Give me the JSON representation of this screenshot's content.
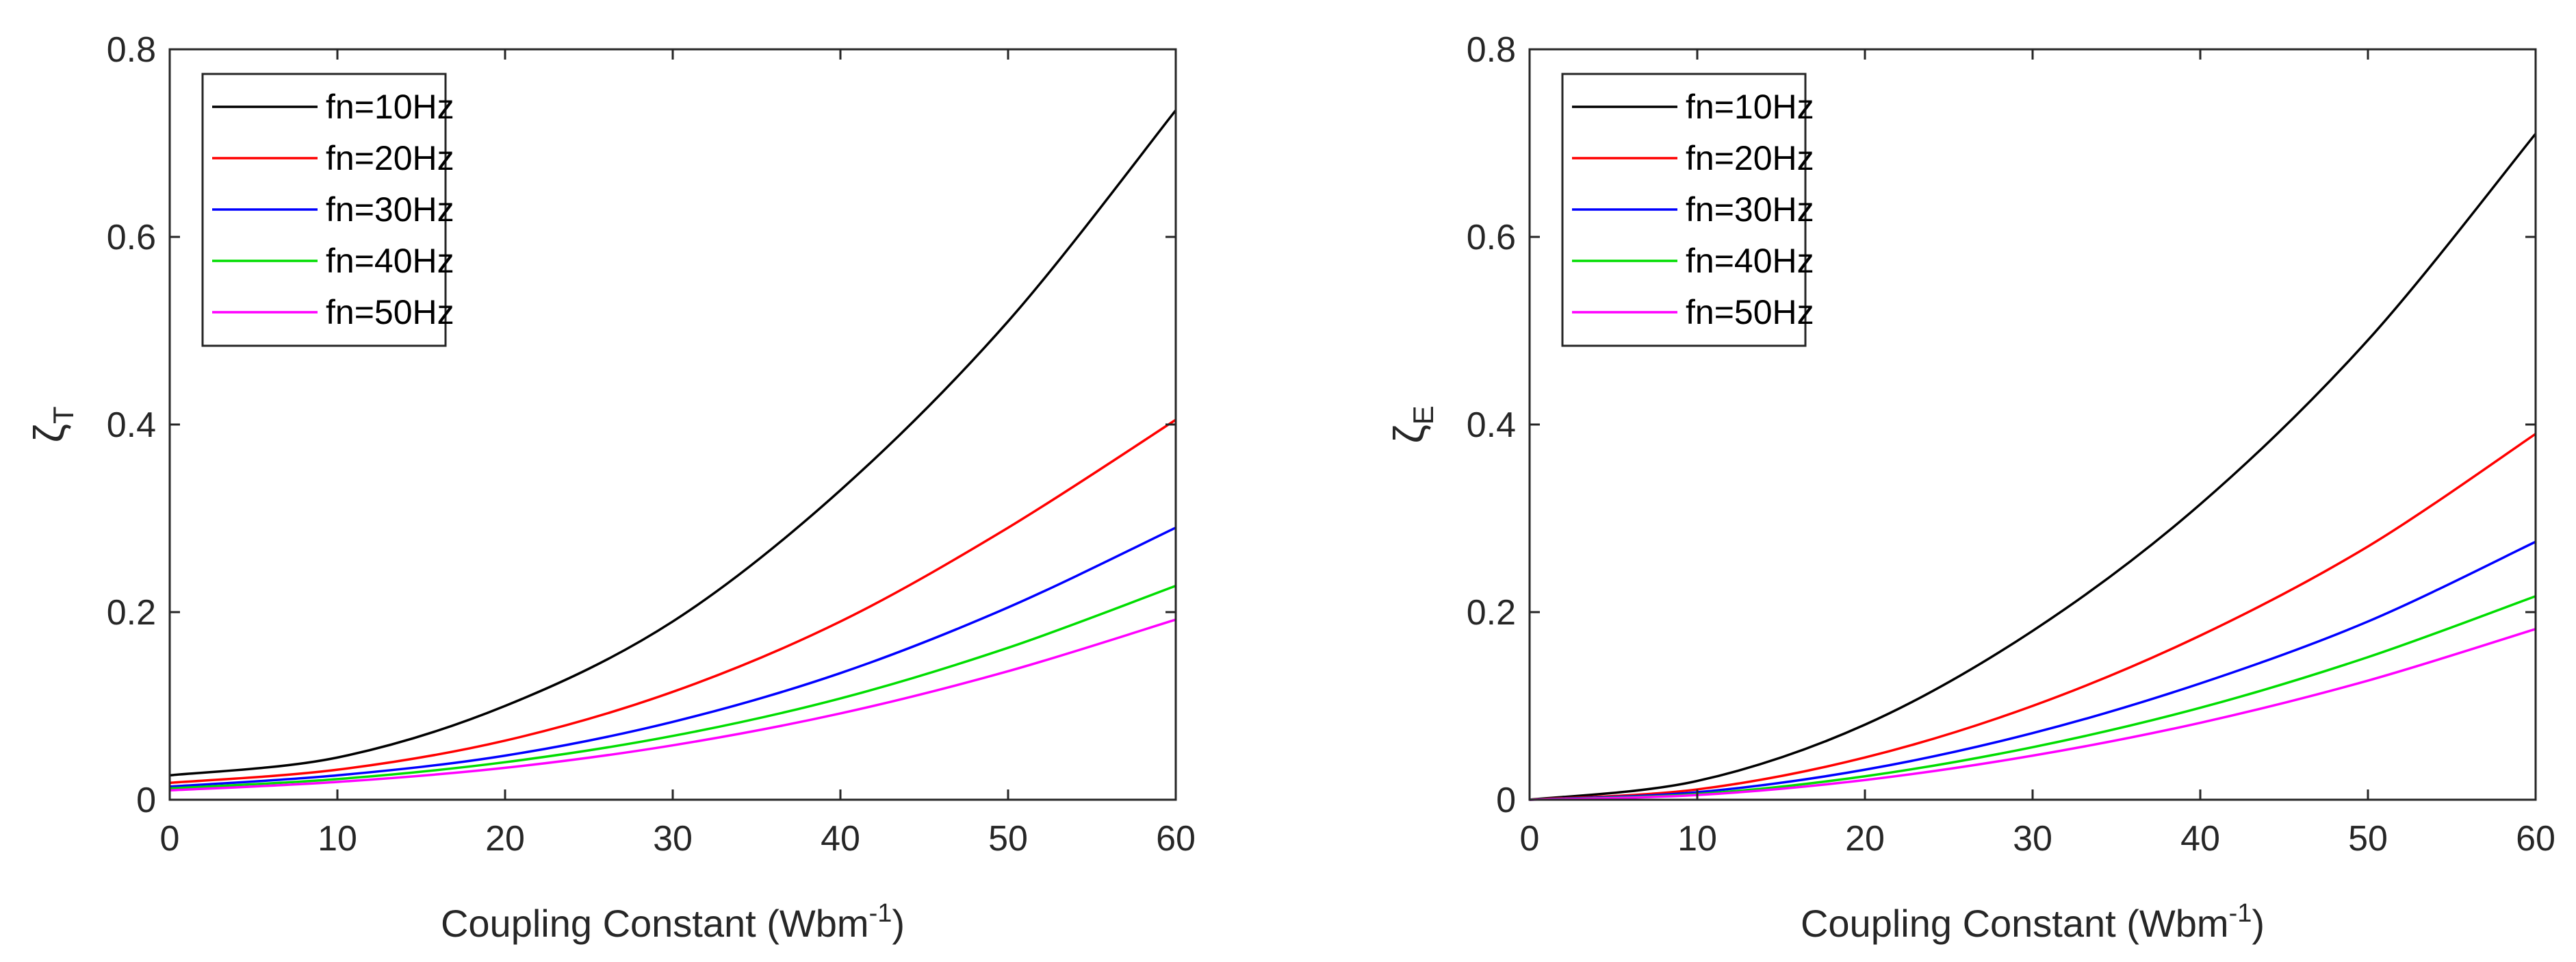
{
  "chart_data": [
    {
      "type": "line",
      "xlabel": "Coupling Constant (Wbm",
      "xlabel_superscript": "-1",
      "xlabel_close": ")",
      "ylabel": "ζ",
      "ylabel_subscript": "T",
      "xlim": [
        0,
        60
      ],
      "ylim": [
        0,
        0.8
      ],
      "xticks": [
        "0",
        "10",
        "20",
        "30",
        "40",
        "50",
        "60"
      ],
      "yticks": [
        "0",
        "0.2",
        "0.4",
        "0.6",
        "0.8"
      ],
      "legend_position": "top-left",
      "x": [
        0,
        10,
        20,
        30,
        40,
        50,
        60
      ],
      "series": [
        {
          "name": "fn=10Hz",
          "color": "#000000",
          "values": [
            0.026,
            0.045,
            0.1,
            0.19,
            0.33,
            0.51,
            0.735
          ]
        },
        {
          "name": "fn=20Hz",
          "color": "#ff0000",
          "values": [
            0.018,
            0.032,
            0.063,
            0.115,
            0.19,
            0.29,
            0.405
          ]
        },
        {
          "name": "fn=30Hz",
          "color": "#0000ff",
          "values": [
            0.014,
            0.026,
            0.047,
            0.083,
            0.135,
            0.205,
            0.29
          ]
        },
        {
          "name": "fn=40Hz",
          "color": "#00dd00",
          "values": [
            0.012,
            0.022,
            0.04,
            0.068,
            0.108,
            0.162,
            0.228
          ]
        },
        {
          "name": "fn=50Hz",
          "color": "#ff00ff",
          "values": [
            0.01,
            0.019,
            0.034,
            0.058,
            0.092,
            0.137,
            0.192
          ]
        }
      ]
    },
    {
      "type": "line",
      "xlabel": "Coupling Constant (Wbm",
      "xlabel_superscript": "-1",
      "xlabel_close": ")",
      "ylabel": "ζ",
      "ylabel_subscript": "E",
      "xlim": [
        0,
        60
      ],
      "ylim": [
        0,
        0.8
      ],
      "xticks": [
        "0",
        "10",
        "20",
        "30",
        "40",
        "50",
        "60"
      ],
      "yticks": [
        "0",
        "0.2",
        "0.4",
        "0.6",
        "0.8"
      ],
      "legend_position": "top-left",
      "x": [
        0,
        10,
        20,
        30,
        40,
        50,
        60
      ],
      "series": [
        {
          "name": "fn=10Hz",
          "color": "#000000",
          "values": [
            0.0,
            0.02,
            0.08,
            0.18,
            0.315,
            0.49,
            0.71
          ]
        },
        {
          "name": "fn=20Hz",
          "color": "#ff0000",
          "values": [
            0.0,
            0.011,
            0.045,
            0.1,
            0.175,
            0.27,
            0.39
          ]
        },
        {
          "name": "fn=30Hz",
          "color": "#0000ff",
          "values": [
            0.0,
            0.008,
            0.032,
            0.071,
            0.124,
            0.19,
            0.275
          ]
        },
        {
          "name": "fn=40Hz",
          "color": "#00dd00",
          "values": [
            0.0,
            0.006,
            0.025,
            0.056,
            0.098,
            0.152,
            0.217
          ]
        },
        {
          "name": "fn=50Hz",
          "color": "#ff00ff",
          "values": [
            0.0,
            0.005,
            0.021,
            0.047,
            0.082,
            0.127,
            0.182
          ]
        }
      ]
    }
  ]
}
